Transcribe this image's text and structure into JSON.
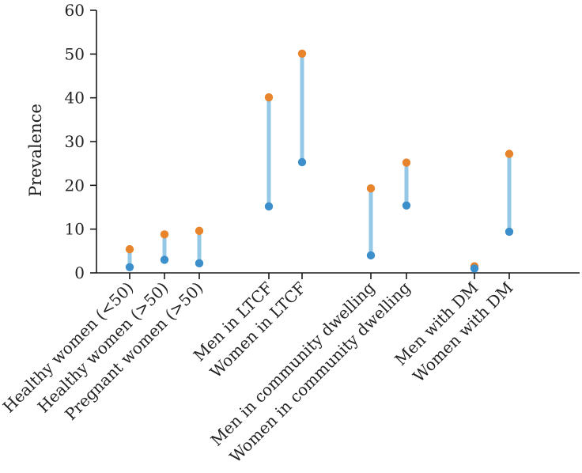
{
  "chart_data": {
    "type": "dumbbell",
    "ylabel": "Prevalence",
    "ylim": [
      0,
      60
    ],
    "yticks": [
      0,
      10,
      20,
      30,
      40,
      50,
      60
    ],
    "grid": false,
    "categories": [
      "Healthy women (<50)",
      "Healthy women (>50)",
      "Pregnant women (>50)",
      "Men in LTCF",
      "Women in LTCF",
      "Men in community dwelling",
      "Women in community dwelling",
      "Men with DM",
      "Women with DM"
    ],
    "groups": [
      [
        0,
        1,
        2
      ],
      [
        3,
        4
      ],
      [
        5,
        6
      ],
      [
        7,
        8
      ]
    ],
    "series": [
      {
        "values": [
          5.4,
          8.8,
          9.6,
          40.1,
          50.1,
          19.3,
          25.2,
          1.5,
          27.2
        ]
      },
      {
        "values": [
          1.3,
          3.0,
          2.2,
          15.2,
          25.3,
          4.0,
          15.4,
          1.0,
          9.4
        ]
      }
    ],
    "colors": {
      "high": "#e8842c",
      "low": "#3d8fcb",
      "connector": "#95c7e6",
      "axis": "#1a1a1a"
    }
  }
}
